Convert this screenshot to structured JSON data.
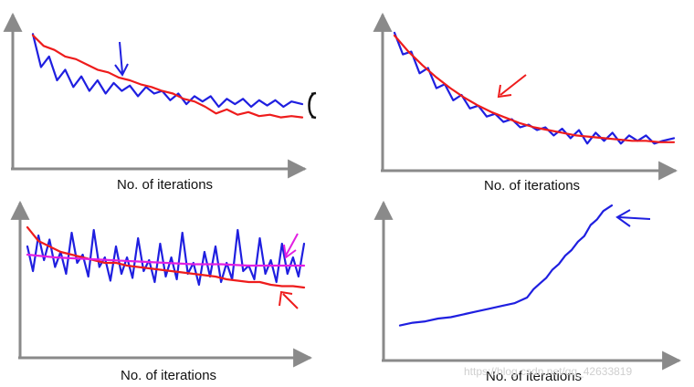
{
  "watermark": "https://blog.csdn.net/qq_42633819",
  "colors": {
    "axis": "#8a8a8a",
    "blue": "#1f1fe0",
    "red": "#ee1c1c",
    "magenta": "#e21fe2",
    "black": "#111111"
  },
  "chart_data": [
    {
      "type": "line",
      "xlabel": "No. of iterations",
      "ylabel": "",
      "xlim": [
        0,
        100
      ],
      "ylim": [
        0,
        100
      ],
      "series": [
        {
          "color": "blue",
          "x": [
            0,
            3,
            6,
            9,
            12,
            15,
            18,
            21,
            24,
            27,
            30,
            33,
            36,
            39,
            42,
            45,
            48,
            51,
            54,
            57,
            60,
            63,
            66,
            69,
            72,
            75,
            78,
            81,
            84,
            87,
            90,
            93,
            96,
            100
          ],
          "y": [
            95,
            70,
            78,
            60,
            68,
            55,
            63,
            52,
            60,
            50,
            58,
            52,
            56,
            48,
            55,
            50,
            52,
            45,
            50,
            42,
            48,
            44,
            48,
            40,
            46,
            42,
            46,
            40,
            45,
            41,
            45,
            40,
            44,
            42
          ]
        },
        {
          "color": "red",
          "x": [
            0,
            4,
            8,
            12,
            16,
            20,
            24,
            28,
            32,
            36,
            40,
            44,
            48,
            52,
            56,
            60,
            64,
            68,
            72,
            76,
            80,
            84,
            88,
            92,
            96,
            100
          ],
          "y": [
            94,
            86,
            83,
            78,
            76,
            72,
            68,
            66,
            62,
            60,
            57,
            55,
            52,
            50,
            46,
            44,
            40,
            35,
            38,
            34,
            36,
            33,
            34,
            32,
            33,
            32
          ]
        }
      ]
    },
    {
      "type": "line",
      "xlabel": "No. of iterations",
      "ylabel": "",
      "xlim": [
        0,
        100
      ],
      "ylim": [
        0,
        100
      ],
      "series": [
        {
          "color": "blue",
          "x": [
            0,
            3,
            6,
            9,
            12,
            15,
            18,
            21,
            24,
            27,
            30,
            33,
            36,
            39,
            42,
            45,
            48,
            51,
            54,
            57,
            60,
            63,
            66,
            69,
            72,
            75,
            78,
            81,
            84,
            87,
            90,
            93,
            96,
            100
          ],
          "y": [
            96,
            80,
            82,
            66,
            70,
            55,
            58,
            46,
            50,
            40,
            42,
            34,
            36,
            30,
            32,
            26,
            28,
            24,
            26,
            20,
            25,
            18,
            24,
            14,
            22,
            16,
            22,
            14,
            20,
            16,
            20,
            14,
            16,
            18
          ]
        },
        {
          "color": "red",
          "x": [
            0,
            5,
            10,
            15,
            20,
            25,
            30,
            35,
            40,
            45,
            50,
            55,
            60,
            65,
            70,
            75,
            80,
            85,
            90,
            95,
            100
          ],
          "y": [
            94,
            82,
            72,
            63,
            55,
            48,
            42,
            37,
            33,
            29,
            26,
            24,
            22,
            20,
            19,
            18,
            17,
            16,
            16,
            15,
            15
          ]
        }
      ]
    },
    {
      "type": "line",
      "xlabel": "No. of iterations",
      "ylabel": "",
      "xlim": [
        0,
        100
      ],
      "ylim": [
        0,
        100
      ],
      "series": [
        {
          "color": "blue",
          "x": [
            0,
            2,
            4,
            6,
            8,
            10,
            12,
            14,
            16,
            18,
            20,
            22,
            24,
            26,
            28,
            30,
            32,
            34,
            36,
            38,
            40,
            42,
            44,
            46,
            48,
            50,
            52,
            54,
            56,
            58,
            60,
            62,
            64,
            66,
            68,
            70,
            72,
            74,
            76,
            78,
            80,
            82,
            84,
            86,
            88,
            90,
            92,
            94,
            96,
            98,
            100
          ],
          "y": [
            70,
            52,
            78,
            60,
            75,
            55,
            66,
            50,
            80,
            58,
            64,
            48,
            82,
            55,
            62,
            45,
            70,
            50,
            62,
            47,
            76,
            52,
            60,
            44,
            72,
            48,
            62,
            46,
            80,
            50,
            58,
            42,
            66,
            48,
            70,
            44,
            58,
            46,
            82,
            52,
            56,
            46,
            76,
            50,
            60,
            44,
            72,
            50,
            62,
            48,
            72
          ]
        },
        {
          "color": "red",
          "x": [
            0,
            4,
            8,
            12,
            16,
            20,
            24,
            28,
            32,
            36,
            40,
            44,
            48,
            52,
            56,
            60,
            64,
            68,
            72,
            76,
            80,
            84,
            88,
            92,
            96,
            100
          ],
          "y": [
            84,
            74,
            70,
            66,
            64,
            62,
            60,
            58,
            58,
            56,
            55,
            54,
            53,
            52,
            51,
            50,
            49,
            48,
            46,
            45,
            44,
            44,
            42,
            41,
            41,
            40
          ]
        },
        {
          "color": "magenta",
          "x": [
            0,
            10,
            20,
            30,
            40,
            50,
            60,
            70,
            80,
            90,
            100
          ],
          "y": [
            64,
            62,
            61,
            60,
            59,
            58,
            57,
            57,
            56,
            56,
            56
          ]
        }
      ]
    },
    {
      "type": "line",
      "xlabel": "No. of iterations",
      "ylabel": "",
      "xlim": [
        0,
        100
      ],
      "ylim": [
        0,
        100
      ],
      "series": [
        {
          "color": "blue",
          "x": [
            0,
            6,
            12,
            18,
            24,
            30,
            36,
            42,
            48,
            54,
            60,
            63,
            66,
            69,
            72,
            75,
            78,
            81,
            84,
            87,
            90,
            93,
            96,
            100
          ],
          "y": [
            12,
            14,
            15,
            17,
            18,
            20,
            22,
            24,
            26,
            28,
            32,
            38,
            42,
            46,
            52,
            56,
            62,
            66,
            72,
            76,
            84,
            88,
            94,
            98
          ]
        }
      ]
    }
  ]
}
